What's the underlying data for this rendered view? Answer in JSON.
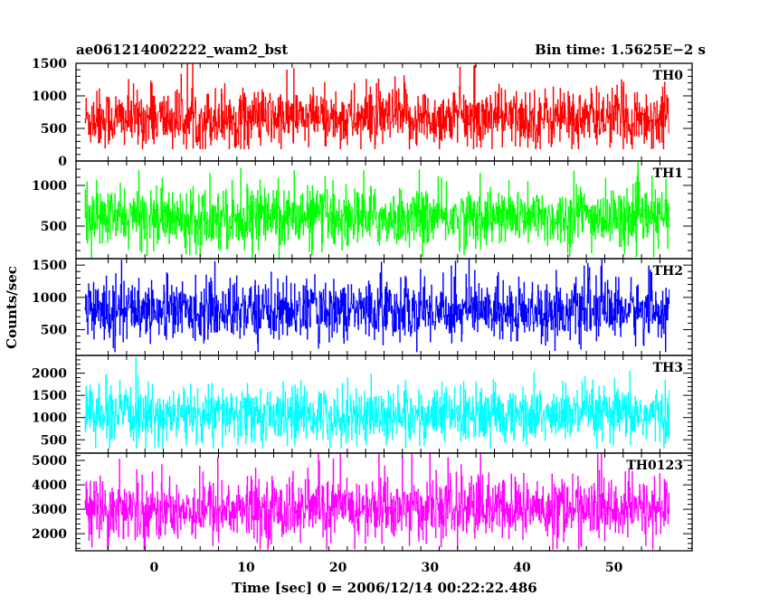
{
  "chart_data": {
    "type": "line",
    "title_left": "ae061214002222_wam2_bst",
    "title_right": "Bin time: 1.5625E−2 s",
    "xlabel": "Time [sec] 0 = 2006/12/14 00:22:22.486",
    "ylabel": "Counts/sec",
    "xlim": [
      -8.5,
      58.5
    ],
    "x_ticks": [
      0,
      10,
      20,
      30,
      40,
      50
    ],
    "x_start": -7.5,
    "x_end": 56,
    "bin_time": 0.015625,
    "grid": false,
    "panels": [
      {
        "name": "TH0",
        "color": "#ff0000",
        "ylim": [
          0,
          1500
        ],
        "y_ticks": [
          0,
          500,
          1000,
          1500
        ],
        "base": 650,
        "spread": 230,
        "low": 180,
        "high": 1500
      },
      {
        "name": "TH1",
        "color": "#00ff00",
        "ylim": [
          100,
          1300
        ],
        "y_ticks": [
          500,
          1000
        ],
        "base": 600,
        "spread": 180,
        "low": 100,
        "high": 1300
      },
      {
        "name": "TH2",
        "color": "#0000ff",
        "ylim": [
          100,
          1600
        ],
        "y_ticks": [
          500,
          1000,
          1500
        ],
        "base": 800,
        "spread": 230,
        "low": 150,
        "high": 1600
      },
      {
        "name": "TH3",
        "color": "#00ffff",
        "ylim": [
          200,
          2400
        ],
        "y_ticks": [
          500,
          1000,
          1500,
          2000
        ],
        "base": 1050,
        "spread": 320,
        "low": 300,
        "high": 2400
      },
      {
        "name": "TH0123",
        "color": "#ff00ff",
        "ylim": [
          1300,
          5300
        ],
        "y_ticks": [
          2000,
          3000,
          4000,
          5000
        ],
        "base": 3000,
        "spread": 650,
        "low": 1350,
        "high": 5300
      }
    ]
  }
}
